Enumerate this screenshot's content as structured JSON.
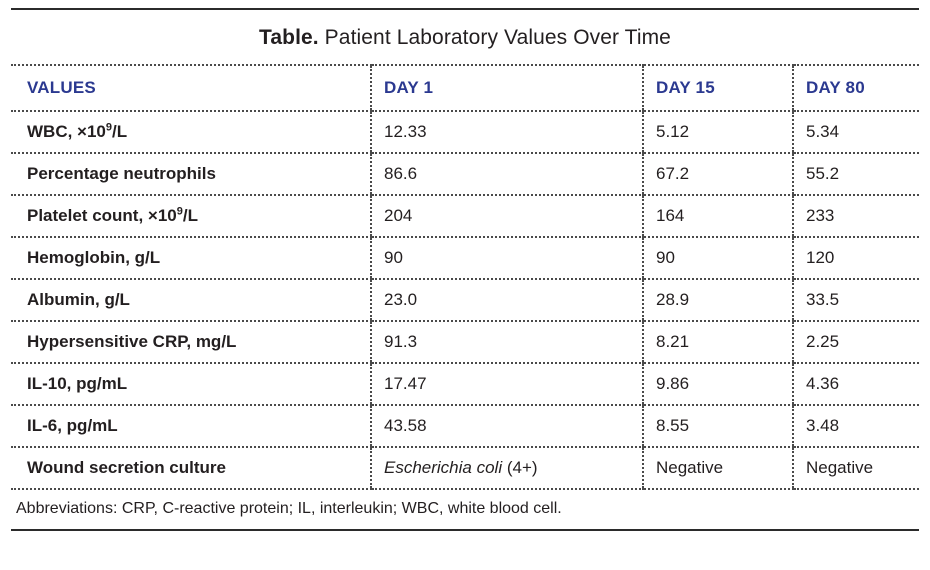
{
  "title": {
    "bold": "Table.",
    "rest": " Patient Laboratory Values Over Time"
  },
  "columns": [
    "VALUES",
    "DAY 1",
    "DAY 15",
    "DAY 80"
  ],
  "rows": [
    {
      "label_pre": "WBC, ×10",
      "label_sup": "9",
      "label_post": "/L",
      "day1_italic": "",
      "day1": "12.33",
      "day15": "5.12",
      "day80": "5.34"
    },
    {
      "label_pre": "Percentage neutrophils",
      "label_sup": "",
      "label_post": "",
      "day1_italic": "",
      "day1": "86.6",
      "day15": "67.2",
      "day80": "55.2"
    },
    {
      "label_pre": "Platelet count, ×10",
      "label_sup": "9",
      "label_post": "/L",
      "day1_italic": "",
      "day1": "204",
      "day15": "164",
      "day80": "233"
    },
    {
      "label_pre": "Hemoglobin, g/L",
      "label_sup": "",
      "label_post": "",
      "day1_italic": "",
      "day1": "90",
      "day15": "90",
      "day80": "120"
    },
    {
      "label_pre": "Albumin, g/L",
      "label_sup": "",
      "label_post": "",
      "day1_italic": "",
      "day1": "23.0",
      "day15": "28.9",
      "day80": "33.5"
    },
    {
      "label_pre": "Hypersensitive CRP, mg/L",
      "label_sup": "",
      "label_post": "",
      "day1_italic": "",
      "day1": "91.3",
      "day15": "8.21",
      "day80": "2.25"
    },
    {
      "label_pre": "IL-10, pg/mL",
      "label_sup": "",
      "label_post": "",
      "day1_italic": "",
      "day1": "17.47",
      "day15": "9.86",
      "day80": "4.36"
    },
    {
      "label_pre": "IL-6, pg/mL",
      "label_sup": "",
      "label_post": "",
      "day1_italic": "",
      "day1": "43.58",
      "day15": "8.55",
      "day80": "3.48"
    },
    {
      "label_pre": "Wound secretion culture",
      "label_sup": "",
      "label_post": "",
      "day1_italic": "Escherichia coli",
      "day1": " (4+)",
      "day15": "Negative",
      "day80": "Negative"
    }
  ],
  "footnote": "Abbreviations: CRP, C-reactive protein; IL, interleukin; WBC, white blood cell.",
  "colors": {
    "header_text": "#2b3990",
    "body_text": "#231f20",
    "rule": "#2b2b2b",
    "dotted_border": "#4a4a4a"
  }
}
